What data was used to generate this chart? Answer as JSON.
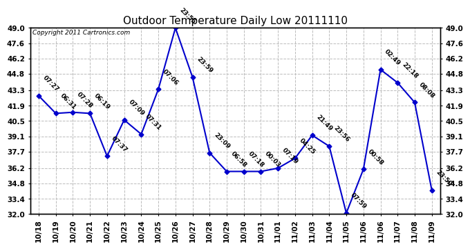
{
  "title": "Outdoor Temperature Daily Low 20111110",
  "copyright": "Copyright 2011 Cartronics.com",
  "x_labels": [
    "10/18",
    "10/19",
    "10/20",
    "10/21",
    "10/22",
    "10/23",
    "10/24",
    "10/25",
    "10/26",
    "10/27",
    "10/28",
    "10/29",
    "10/30",
    "10/31",
    "11/01",
    "11/02",
    "11/03",
    "11/04",
    "11/05",
    "11/06",
    "11/06",
    "11/07",
    "11/08",
    "11/09"
  ],
  "y_values": [
    42.8,
    41.2,
    41.3,
    41.2,
    37.3,
    40.6,
    39.3,
    43.4,
    49.0,
    44.5,
    37.6,
    35.9,
    35.9,
    35.9,
    36.2,
    37.1,
    39.2,
    38.2,
    32.1,
    36.1,
    45.2,
    44.0,
    42.2,
    34.2
  ],
  "time_labels": [
    "07:27",
    "06:31",
    "07:28",
    "06:19",
    "07:37",
    "07:09",
    "07:31",
    "07:06",
    "23:55",
    "23:59",
    "23:09",
    "06:58",
    "07:18",
    "00:03",
    "07:19",
    "04:25",
    "21:49",
    "23:56",
    "07:59",
    "00:58",
    "02:49",
    "22:18",
    "08:08",
    "23:50"
  ],
  "ylim_min": 32.0,
  "ylim_max": 49.0,
  "yticks": [
    32.0,
    33.4,
    34.8,
    36.2,
    37.7,
    39.1,
    40.5,
    41.9,
    43.3,
    44.8,
    46.2,
    47.6,
    49.0
  ],
  "line_color": "#0000cc",
  "marker_color": "#0000cc",
  "bg_color": "#ffffff",
  "plot_bg_color": "#ffffff",
  "title_fontsize": 11,
  "label_fontsize": 6.5,
  "tick_fontsize": 7.5,
  "copyright_fontsize": 6.5
}
